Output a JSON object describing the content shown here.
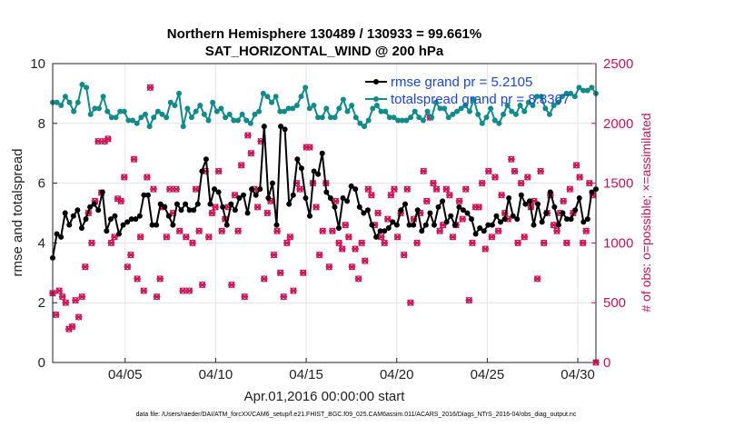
{
  "chart_data": {
    "type": "line",
    "title_line1": "Northern Hemisphere 130489 / 130933 = 99.661%",
    "title_line2": "SAT_HORIZONTAL_WIND @ 200 hPa",
    "xlabel": "Apr.01,2016 00:00:00 start",
    "ylabel": "rmse and totalspread",
    "ylabel_right": "# of obs: o=possible; ×=assimilated",
    "xlim": [
      1,
      31
    ],
    "ylim": [
      0,
      10
    ],
    "ylim_right": [
      0,
      2500
    ],
    "grid": true,
    "x_ticks": [
      {
        "value": 5,
        "label": "04/05"
      },
      {
        "value": 10,
        "label": "04/10"
      },
      {
        "value": 15,
        "label": "04/15"
      },
      {
        "value": 20,
        "label": "04/20"
      },
      {
        "value": 25,
        "label": "04/25"
      },
      {
        "value": 30,
        "label": "04/30"
      }
    ],
    "y_ticks": [
      "0",
      "2",
      "4",
      "6",
      "8",
      "10"
    ],
    "y_ticks_right": [
      "0",
      "500",
      "1000",
      "1500",
      "2000",
      "2500"
    ],
    "legend": [
      {
        "label": "rmse grand pr = 5.2105",
        "color": "#000000"
      },
      {
        "label": "totalspread grand pr = 8.8367",
        "color": "#108a8a"
      }
    ],
    "legend_position": "top-right",
    "series": [
      {
        "name": "rmse",
        "color": "#000000",
        "axis": "left",
        "values": [
          3.5,
          4.3,
          4.2,
          5.0,
          4.6,
          4.9,
          5.1,
          4.5,
          4.8,
          5.2,
          5.3,
          5.1,
          5.7,
          4.4,
          4.8,
          4.9,
          4.3,
          4.6,
          4.7,
          4.8,
          4.8,
          4.9,
          5.6,
          5.6,
          4.6,
          4.6,
          5.3,
          5.2,
          4.9,
          4.6,
          5.3,
          5.1,
          5.3,
          5.1,
          5.1,
          5.3,
          6.4,
          6.8,
          5.3,
          5.8,
          5.7,
          5.2,
          4.6,
          5.3,
          5.1,
          5.5,
          5.6,
          5.0,
          5.8,
          5.6,
          5.8,
          7.9,
          5.5,
          6.0,
          4.6,
          7.9,
          7.8,
          5.3,
          5.6,
          6.8,
          6.5,
          5.5,
          4.9,
          6.4,
          6.3,
          7.0,
          5.7,
          5.5,
          5.2,
          4.5,
          5.5,
          5.4,
          5.9,
          5.8,
          5.2,
          5.0,
          5.1,
          4.6,
          4.2,
          4.4,
          4.4,
          4.5,
          4.7,
          4.6,
          5.1,
          5.3,
          4.6,
          4.6,
          5.1,
          4.4,
          4.6,
          5.0,
          4.6,
          5.2,
          5.4,
          4.7,
          4.9,
          4.6,
          5.2,
          5.1,
          5.0,
          4.8,
          4.3,
          4.5,
          4.4,
          4.6,
          4.6,
          4.9,
          4.7,
          4.8,
          5.5,
          4.9,
          4.8,
          5.6,
          5.3,
          5.4,
          4.6,
          5.3,
          4.7,
          5.0,
          5.7,
          5.2,
          4.6,
          5.0,
          4.8,
          4.8,
          5.1,
          5.5,
          4.7,
          4.8,
          5.7,
          5.8
        ]
      },
      {
        "name": "totalspread",
        "color": "#108a8a",
        "axis": "left",
        "values": [
          8.7,
          8.7,
          8.6,
          8.9,
          8.7,
          8.4,
          8.7,
          9.3,
          9.2,
          8.3,
          8.5,
          8.5,
          8.9,
          8.4,
          8.2,
          8.2,
          8.4,
          8.4,
          8.1,
          8.1,
          8.0,
          8.2,
          8.3,
          7.9,
          8.2,
          8.4,
          8.3,
          8.2,
          8.7,
          8.6,
          9.0,
          7.9,
          8.5,
          8.2,
          8.4,
          8.6,
          8.3,
          8.1,
          8.7,
          8.4,
          8.5,
          8.2,
          8.3,
          8.1,
          8.1,
          8.3,
          8.1,
          8.0,
          8.3,
          8.4,
          9.0,
          8.9,
          8.7,
          8.9,
          8.4,
          8.4,
          8.5,
          8.5,
          8.6,
          8.9,
          9.2,
          8.5,
          8.6,
          8.2,
          8.2,
          8.5,
          8.2,
          8.2,
          8.5,
          8.8,
          8.4,
          8.6,
          8.2,
          8.0,
          7.9,
          8.1,
          8.5,
          8.6,
          8.4,
          8.4,
          8.2,
          8.2,
          8.1,
          8.1,
          8.1,
          8.2,
          8.4,
          8.2,
          8.1,
          8.4,
          8.2,
          8.7,
          8.5,
          8.5,
          8.2,
          8.3,
          8.4,
          8.5,
          8.6,
          8.4,
          8.8,
          8.3,
          8.0,
          8.2,
          8.5,
          8.1,
          8.0,
          8.3,
          8.6,
          8.4,
          8.3,
          8.6,
          8.4,
          8.7,
          8.6,
          8.9,
          8.9,
          8.5,
          8.3,
          8.6,
          8.7,
          8.9,
          9.0,
          9.0,
          8.9,
          9.2,
          9.1,
          9.1,
          9.2,
          9.0
        ]
      },
      {
        "name": "possible",
        "color": "#cc1155",
        "axis": "right",
        "values": [
          580,
          400,
          600,
          550,
          500,
          280,
          300,
          520,
          380,
          550,
          800,
          1250,
          1000,
          1350,
          1850,
          1420,
          1850,
          1870,
          1000,
          1050,
          1370,
          1350,
          1550,
          800,
          900,
          1700,
          700,
          1050,
          600,
          1550,
          2300,
          1450,
          550,
          700,
          1300,
          1050,
          1450,
          1250,
          1450,
          1100,
          600,
          1050,
          600,
          1000,
          1450,
          1100,
          650,
          1600,
          1050,
          1250,
          1300,
          1600,
          1100,
          1200,
          1300,
          650,
          1400,
          1100,
          1650,
          550,
          1900,
          1750,
          1450,
          1300,
          1850,
          700,
          1250,
          1350,
          900,
          1100,
          750,
          550,
          1000,
          1050,
          600,
          1500,
          1450,
          750,
          1800,
          1800,
          1500,
          1300,
          900,
          1100,
          1500,
          800,
          1100,
          1350,
          1000,
          950,
          1150,
          1050,
          800,
          950,
          700,
          1000,
          850,
          1450,
          1400,
          1150,
          1250,
          1050,
          1000,
          1200,
          1400,
          1450,
          1050,
          1250,
          900,
          1450,
          500,
          1200,
          1000,
          1250,
          1600,
          1350,
          2050,
          1500,
          1450,
          1100,
          1150,
          1450,
          1400,
          1050,
          1150,
          1350,
          1200,
          1450,
          520,
          1000,
          1300,
          1300,
          1500,
          950,
          1600,
          1050,
          1550,
          1100,
          1400,
          1250,
          1200,
          1700,
          1600,
          1000,
          1500,
          1050,
          1550,
          1300,
          1350,
          700,
          1600,
          1000,
          1250,
          1400,
          1150,
          1100,
          1250,
          1350,
          1000,
          1450,
          1250,
          1650,
          1550,
          1000,
          1100,
          1500,
          1400,
          0
        ]
      },
      {
        "name": "assimilated",
        "color": "#cc1155",
        "axis": "right",
        "values": [
          580,
          400,
          600,
          550,
          500,
          280,
          300,
          520,
          380,
          550,
          800,
          1250,
          1000,
          1350,
          1850,
          1420,
          1850,
          1870,
          1000,
          1050,
          1370,
          1350,
          1550,
          800,
          900,
          1700,
          700,
          1050,
          600,
          1550,
          2300,
          1450,
          550,
          700,
          1300,
          1050,
          1450,
          1250,
          1450,
          1100,
          600,
          1050,
          600,
          1000,
          1450,
          1100,
          650,
          1600,
          1050,
          1250,
          1300,
          1600,
          1100,
          1200,
          1300,
          650,
          1400,
          1100,
          1650,
          550,
          1900,
          1750,
          1450,
          1300,
          1850,
          700,
          1250,
          1350,
          900,
          1100,
          750,
          550,
          1000,
          1050,
          600,
          1500,
          1450,
          750,
          1800,
          1800,
          1500,
          1300,
          900,
          1100,
          1500,
          800,
          1100,
          1350,
          1000,
          950,
          1150,
          1050,
          800,
          950,
          700,
          1000,
          850,
          1450,
          1400,
          1150,
          1250,
          1050,
          1000,
          1200,
          1400,
          1450,
          1050,
          1250,
          900,
          1450,
          500,
          1200,
          1000,
          1250,
          1600,
          1350,
          2050,
          1500,
          1450,
          1100,
          1150,
          1450,
          1400,
          1050,
          1150,
          1350,
          1200,
          1450,
          520,
          1000,
          1300,
          1300,
          1500,
          950,
          1600,
          1050,
          1550,
          1100,
          1400,
          1250,
          1200,
          1700,
          1600,
          1000,
          1500,
          1050,
          1550,
          1300,
          1350,
          700,
          1600,
          1000,
          1250,
          1400,
          1150,
          1100,
          1250,
          1350,
          1000,
          1450,
          1250,
          1650,
          1550,
          1000,
          1100,
          1500,
          1400,
          0
        ]
      }
    ]
  },
  "footer": "data file: /Users/raeder/DAI/ATM_forcXX/CAM6_setup/f.e21.FHIST_BGC.f09_025.CAM6assim.011/ACARS_2016/Diags_NTrS_2016-04/obs_diag_output.nc"
}
